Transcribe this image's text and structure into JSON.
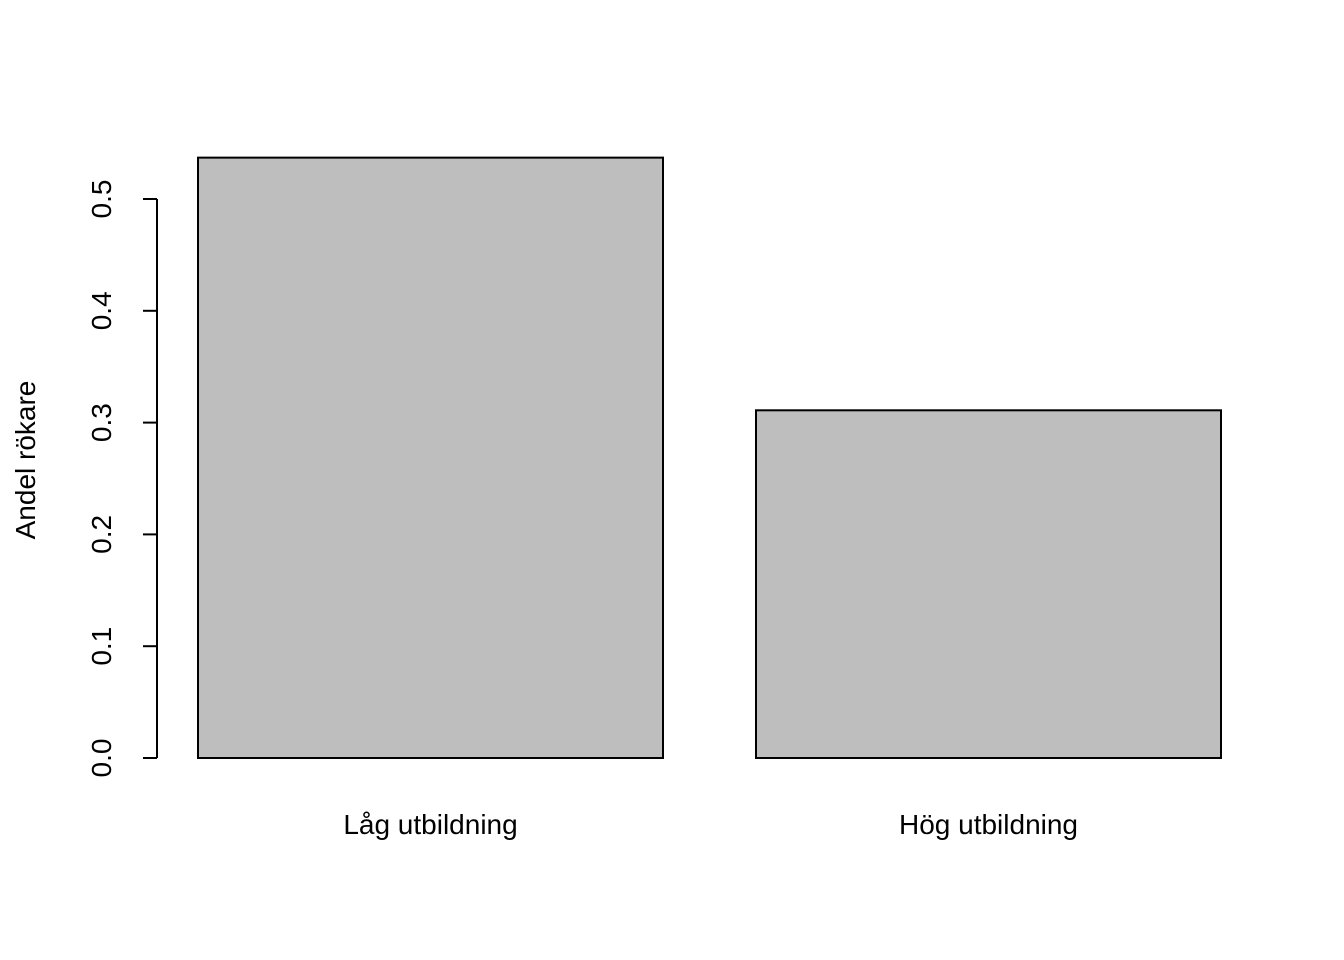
{
  "chart_data": {
    "type": "bar",
    "title": "",
    "xlabel": "",
    "ylabel": "Andel rökare",
    "categories": [
      "Låg utbildning",
      "Hög utbildning"
    ],
    "values": [
      0.537,
      0.311
    ],
    "ylim": [
      0,
      0.5
    ],
    "yticks": [
      "0.0",
      "0.1",
      "0.2",
      "0.3",
      "0.4",
      "0.5"
    ],
    "bar_color": "#bebebe",
    "border_color": "#000000",
    "grid": false,
    "legend": "none"
  }
}
